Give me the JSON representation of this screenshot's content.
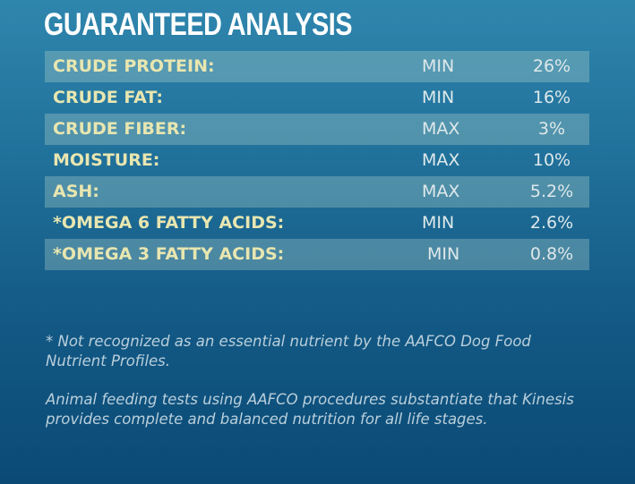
{
  "heading": "GUARANTEED ANALYSIS",
  "rows": [
    {
      "name": "CRUDE PROTEIN:",
      "type": "MIN",
      "value": "26%"
    },
    {
      "name": "CRUDE FAT:",
      "type": "MIN",
      "value": "16%"
    },
    {
      "name": "CRUDE FIBER:",
      "type": "MAX",
      "value": "3%"
    },
    {
      "name": "MOISTURE:",
      "type": "MAX",
      "value": "10%"
    },
    {
      "name": "ASH:",
      "type": "MAX",
      "value": "5.2%"
    },
    {
      "name": "*OMEGA 6 FATTY ACIDS:",
      "type": "MIN",
      "value": "2.6%"
    },
    {
      "name": "*OMEGA 3 FATTY ACIDS:",
      "type": "MIN",
      "value": "0.8%"
    }
  ],
  "notes": {
    "footnote": "* Not recognized as an essential nutrient by the AAFCO Dog Food Nutrient Profiles.",
    "statement": "Animal feeding tests using AAFCO procedures substantiate that Kinesis provides complete and balanced nutrition for all life stages."
  }
}
